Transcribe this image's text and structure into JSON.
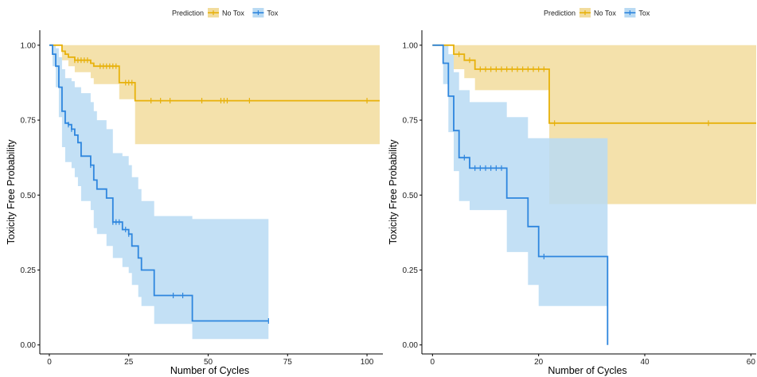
{
  "chart_data": [
    {
      "type": "line",
      "subtype": "kaplan-meier",
      "xlabel": "Number of Cycles",
      "ylabel": "Toxicity Free Probability",
      "xlim": [
        -3,
        105
      ],
      "ylim": [
        -0.03,
        1.05
      ],
      "xticks": [
        0,
        25,
        50,
        75,
        100
      ],
      "yticks": [
        0.0,
        0.25,
        0.5,
        0.75,
        1.0
      ],
      "ytick_labels": [
        "0.00",
        "0.25",
        "0.50",
        "0.75",
        "1.00"
      ],
      "grid": false,
      "legend": {
        "title": "Prediction",
        "position": "top",
        "entries": [
          "No Tox",
          "Tox"
        ]
      },
      "series": [
        {
          "name": "No Tox",
          "color": "#E7B10A",
          "fill": "#F2DC9C",
          "steps": [
            [
              0,
              1.0
            ],
            [
              4,
              0.98
            ],
            [
              5,
              0.97
            ],
            [
              6,
              0.96
            ],
            [
              8,
              0.95
            ],
            [
              13,
              0.94
            ],
            [
              14,
              0.93
            ],
            [
              22,
              0.875
            ],
            [
              27,
              0.815
            ],
            [
              104,
              0.815
            ]
          ],
          "upper": [
            [
              0,
              1.0
            ],
            [
              104,
              0.99
            ]
          ],
          "lower": [
            [
              0,
              1.0
            ],
            [
              4,
              0.95
            ],
            [
              6,
              0.93
            ],
            [
              8,
              0.91
            ],
            [
              13,
              0.89
            ],
            [
              14,
              0.87
            ],
            [
              22,
              0.82
            ],
            [
              27,
              0.67
            ],
            [
              104,
              0.67
            ]
          ],
          "censor": [
            8,
            9,
            10,
            11,
            12,
            16,
            17,
            18,
            19,
            20,
            21,
            24,
            25,
            26,
            32,
            35,
            38,
            48,
            54,
            55,
            56,
            63,
            100
          ]
        },
        {
          "name": "Tox",
          "color": "#2E86DE",
          "fill": "#B9DAF3",
          "steps": [
            [
              0,
              1.0
            ],
            [
              1,
              0.97
            ],
            [
              2,
              0.93
            ],
            [
              3,
              0.86
            ],
            [
              4,
              0.78
            ],
            [
              5,
              0.74
            ],
            [
              6,
              0.735
            ],
            [
              7,
              0.72
            ],
            [
              8,
              0.7
            ],
            [
              9,
              0.675
            ],
            [
              10,
              0.63
            ],
            [
              13,
              0.6
            ],
            [
              14,
              0.55
            ],
            [
              15,
              0.52
            ],
            [
              18,
              0.49
            ],
            [
              20,
              0.41
            ],
            [
              23,
              0.385
            ],
            [
              25,
              0.37
            ],
            [
              26,
              0.33
            ],
            [
              28,
              0.29
            ],
            [
              29,
              0.25
            ],
            [
              33,
              0.165
            ],
            [
              45,
              0.08
            ],
            [
              69,
              0.08
            ]
          ],
          "upper": [
            [
              0,
              1.0
            ],
            [
              1,
              1.0
            ],
            [
              2,
              0.99
            ],
            [
              3,
              0.96
            ],
            [
              4,
              0.92
            ],
            [
              5,
              0.89
            ],
            [
              7,
              0.88
            ],
            [
              8,
              0.86
            ],
            [
              10,
              0.84
            ],
            [
              13,
              0.81
            ],
            [
              14,
              0.78
            ],
            [
              15,
              0.75
            ],
            [
              18,
              0.72
            ],
            [
              20,
              0.64
            ],
            [
              23,
              0.63
            ],
            [
              25,
              0.6
            ],
            [
              26,
              0.56
            ],
            [
              28,
              0.52
            ],
            [
              29,
              0.48
            ],
            [
              33,
              0.43
            ],
            [
              45,
              0.42
            ],
            [
              69,
              0.42
            ]
          ],
          "lower": [
            [
              0,
              1.0
            ],
            [
              1,
              0.93
            ],
            [
              2,
              0.86
            ],
            [
              3,
              0.76
            ],
            [
              4,
              0.66
            ],
            [
              5,
              0.61
            ],
            [
              7,
              0.59
            ],
            [
              8,
              0.56
            ],
            [
              9,
              0.53
            ],
            [
              10,
              0.48
            ],
            [
              13,
              0.45
            ],
            [
              14,
              0.39
            ],
            [
              15,
              0.37
            ],
            [
              18,
              0.33
            ],
            [
              20,
              0.29
            ],
            [
              23,
              0.26
            ],
            [
              25,
              0.24
            ],
            [
              26,
              0.2
            ],
            [
              28,
              0.16
            ],
            [
              29,
              0.13
            ],
            [
              33,
              0.07
            ],
            [
              45,
              0.02
            ],
            [
              69,
              0.02
            ]
          ],
          "censor": [
            6,
            7,
            13,
            20,
            21,
            22,
            24,
            25,
            39,
            42,
            69
          ]
        }
      ]
    },
    {
      "type": "line",
      "subtype": "kaplan-meier",
      "xlabel": "Number of Cycles",
      "ylabel": "Toxicity Free Probability",
      "xlim": [
        -2,
        61
      ],
      "ylim": [
        -0.03,
        1.05
      ],
      "xticks": [
        0,
        20,
        40,
        60
      ],
      "yticks": [
        0.0,
        0.25,
        0.5,
        0.75,
        1.0
      ],
      "ytick_labels": [
        "0.00",
        "0.25",
        "0.50",
        "0.75",
        "1.00"
      ],
      "grid": false,
      "legend": {
        "title": "Prediction",
        "position": "top",
        "entries": [
          "No Tox",
          "Tox"
        ]
      },
      "series": [
        {
          "name": "No Tox",
          "color": "#E7B10A",
          "fill": "#F2DC9C",
          "steps": [
            [
              0,
              1.0
            ],
            [
              4,
              0.97
            ],
            [
              6,
              0.95
            ],
            [
              8,
              0.92
            ],
            [
              22,
              0.74
            ],
            [
              61,
              0.74
            ]
          ],
          "upper": [
            [
              0,
              1.0
            ],
            [
              61,
              1.0
            ]
          ],
          "lower": [
            [
              0,
              1.0
            ],
            [
              4,
              0.92
            ],
            [
              6,
              0.89
            ],
            [
              8,
              0.85
            ],
            [
              22,
              0.47
            ],
            [
              61,
              0.47
            ]
          ],
          "censor": [
            5,
            7,
            9,
            10,
            11,
            12,
            13,
            14,
            15,
            16,
            17,
            18,
            19,
            20,
            21,
            23,
            52
          ]
        },
        {
          "name": "Tox",
          "color": "#2E86DE",
          "fill": "#B9DAF3",
          "steps": [
            [
              0,
              1.0
            ],
            [
              2,
              0.94
            ],
            [
              3,
              0.83
            ],
            [
              4,
              0.715
            ],
            [
              5,
              0.625
            ],
            [
              7,
              0.59
            ],
            [
              14,
              0.49
            ],
            [
              18,
              0.395
            ],
            [
              20,
              0.295
            ],
            [
              33,
              0.295
            ],
            [
              33,
              0.0
            ]
          ],
          "upper": [
            [
              0,
              1.0
            ],
            [
              2,
              1.0
            ],
            [
              3,
              0.97
            ],
            [
              4,
              0.91
            ],
            [
              5,
              0.85
            ],
            [
              7,
              0.81
            ],
            [
              14,
              0.76
            ],
            [
              18,
              0.69
            ],
            [
              33,
              0.69
            ]
          ],
          "lower": [
            [
              0,
              1.0
            ],
            [
              2,
              0.87
            ],
            [
              3,
              0.71
            ],
            [
              4,
              0.58
            ],
            [
              5,
              0.48
            ],
            [
              7,
              0.45
            ],
            [
              14,
              0.31
            ],
            [
              18,
              0.2
            ],
            [
              20,
              0.13
            ],
            [
              33,
              0.13
            ]
          ],
          "censor": [
            6,
            8,
            9,
            10,
            11,
            12,
            13,
            21
          ]
        }
      ]
    }
  ]
}
